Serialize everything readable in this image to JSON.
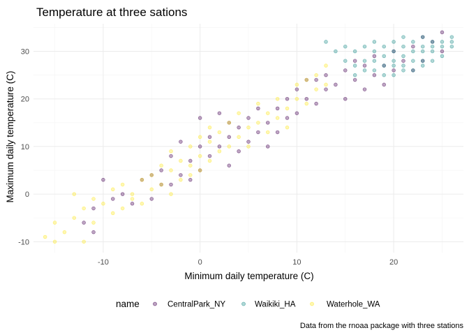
{
  "chart_data": {
    "type": "scatter",
    "title": "Temperature at three sations",
    "xlabel": "Minimum daily temperature (C)",
    "ylabel": "Maximum daily temperature (C)",
    "caption": "Data from the rnoaa package with three stations",
    "xlim": [
      -17.2,
      27.2
    ],
    "ylim": [
      -12.3,
      35.8
    ],
    "x_ticks": [
      -10,
      0,
      10,
      20
    ],
    "y_ticks": [
      -10,
      0,
      10,
      20,
      30
    ],
    "grid": true,
    "legend": {
      "title": "name",
      "position": "bottom",
      "entries": [
        "CentralPark_NY",
        "Waikiki_HA",
        "Waterhole_WA"
      ]
    },
    "colors": {
      "CentralPark_NY": "#440154",
      "Waikiki_HA": "#21908c",
      "Waterhole_WA": "#fde725"
    },
    "series": [
      {
        "name": "CentralPark_NY",
        "points": [
          [
            -12,
            -6
          ],
          [
            -11,
            -3
          ],
          [
            -11,
            -8
          ],
          [
            -10,
            3
          ],
          [
            -9,
            -1
          ],
          [
            -8,
            0
          ],
          [
            -7,
            -2
          ],
          [
            -6,
            3
          ],
          [
            -5,
            -1
          ],
          [
            -5,
            4
          ],
          [
            -4,
            2
          ],
          [
            -4,
            5
          ],
          [
            -3,
            2
          ],
          [
            -3,
            8
          ],
          [
            -2,
            4
          ],
          [
            -2,
            11
          ],
          [
            -1,
            7
          ],
          [
            -1,
            3
          ],
          [
            0,
            10
          ],
          [
            0,
            5
          ],
          [
            0,
            16
          ],
          [
            1,
            12
          ],
          [
            1,
            8
          ],
          [
            2,
            17
          ],
          [
            2,
            10
          ],
          [
            3,
            6
          ],
          [
            3,
            12
          ],
          [
            3,
            15
          ],
          [
            4,
            9
          ],
          [
            4,
            14
          ],
          [
            5,
            11
          ],
          [
            5,
            16
          ],
          [
            6,
            13
          ],
          [
            6,
            18
          ],
          [
            7,
            10
          ],
          [
            7,
            15
          ],
          [
            8,
            18
          ],
          [
            8,
            13
          ],
          [
            9,
            16
          ],
          [
            9,
            20
          ],
          [
            10,
            17
          ],
          [
            10,
            22
          ],
          [
            11,
            20
          ],
          [
            11,
            24
          ],
          [
            12,
            19
          ],
          [
            12,
            24
          ],
          [
            13,
            22
          ],
          [
            13,
            25
          ],
          [
            14,
            23
          ],
          [
            15,
            20
          ],
          [
            15,
            26
          ],
          [
            16,
            24
          ],
          [
            16,
            28
          ],
          [
            17,
            22
          ],
          [
            17,
            27
          ],
          [
            18,
            25
          ],
          [
            18,
            29
          ],
          [
            19,
            23
          ],
          [
            19,
            27
          ],
          [
            20,
            30
          ],
          [
            20,
            26
          ],
          [
            21,
            28
          ],
          [
            22,
            31
          ],
          [
            22,
            26
          ],
          [
            23,
            33
          ],
          [
            23,
            28
          ],
          [
            24,
            32
          ],
          [
            25,
            34
          ],
          [
            25,
            30
          ]
        ]
      },
      {
        "name": "Waikiki_HA",
        "points": [
          [
            13,
            32
          ],
          [
            14,
            30
          ],
          [
            15,
            28
          ],
          [
            15,
            31
          ],
          [
            16,
            25
          ],
          [
            16,
            27
          ],
          [
            16,
            30
          ],
          [
            17,
            26
          ],
          [
            17,
            28
          ],
          [
            17,
            31
          ],
          [
            18,
            26
          ],
          [
            18,
            28
          ],
          [
            18,
            30
          ],
          [
            18,
            32
          ],
          [
            19,
            25
          ],
          [
            19,
            27
          ],
          [
            19,
            29
          ],
          [
            19,
            31
          ],
          [
            20,
            25
          ],
          [
            20,
            27
          ],
          [
            20,
            28
          ],
          [
            20,
            30
          ],
          [
            20,
            32
          ],
          [
            21,
            26
          ],
          [
            21,
            27
          ],
          [
            21,
            29
          ],
          [
            21,
            31
          ],
          [
            21,
            33
          ],
          [
            22,
            26
          ],
          [
            22,
            28
          ],
          [
            22,
            30
          ],
          [
            22,
            32
          ],
          [
            23,
            27
          ],
          [
            23,
            28
          ],
          [
            23,
            30
          ],
          [
            23,
            31
          ],
          [
            23,
            33
          ],
          [
            24,
            28
          ],
          [
            24,
            30
          ],
          [
            24,
            31
          ],
          [
            24,
            32
          ],
          [
            25,
            29
          ],
          [
            25,
            31
          ],
          [
            25,
            32
          ],
          [
            26,
            31
          ],
          [
            26,
            32
          ],
          [
            26,
            33
          ]
        ]
      },
      {
        "name": "Waterhole_WA",
        "points": [
          [
            -16,
            -9
          ],
          [
            -15,
            -10
          ],
          [
            -15,
            -6
          ],
          [
            -14,
            -8
          ],
          [
            -13,
            0
          ],
          [
            -13,
            -5
          ],
          [
            -12,
            -10
          ],
          [
            -12,
            -3
          ],
          [
            -11,
            -1
          ],
          [
            -11,
            -6
          ],
          [
            -10,
            -2
          ],
          [
            -9,
            -4
          ],
          [
            -9,
            1
          ],
          [
            -8,
            -3
          ],
          [
            -8,
            2
          ],
          [
            -7,
            0
          ],
          [
            -7,
            -1
          ],
          [
            -6,
            3
          ],
          [
            -6,
            -2
          ],
          [
            -5,
            1
          ],
          [
            -5,
            4
          ],
          [
            -4,
            2
          ],
          [
            -4,
            6
          ],
          [
            -3,
            0
          ],
          [
            -3,
            5
          ],
          [
            -3,
            9
          ],
          [
            -2,
            3
          ],
          [
            -2,
            7
          ],
          [
            -1,
            4
          ],
          [
            -1,
            6
          ],
          [
            -1,
            10
          ],
          [
            0,
            5
          ],
          [
            0,
            8
          ],
          [
            0,
            12
          ],
          [
            1,
            7
          ],
          [
            1,
            11
          ],
          [
            1,
            14
          ],
          [
            2,
            9
          ],
          [
            2,
            13
          ],
          [
            3,
            10
          ],
          [
            3,
            15
          ],
          [
            4,
            12
          ],
          [
            4,
            17
          ],
          [
            5,
            14
          ],
          [
            5,
            10
          ],
          [
            6,
            15
          ],
          [
            6,
            19
          ],
          [
            7,
            13
          ],
          [
            7,
            17
          ],
          [
            8,
            16
          ],
          [
            8,
            20
          ],
          [
            9,
            18
          ],
          [
            9,
            14
          ],
          [
            10,
            20
          ],
          [
            10,
            23
          ],
          [
            11,
            19
          ],
          [
            11,
            24
          ],
          [
            12,
            22
          ],
          [
            12,
            25
          ],
          [
            13,
            27
          ],
          [
            13,
            23
          ]
        ]
      }
    ]
  }
}
